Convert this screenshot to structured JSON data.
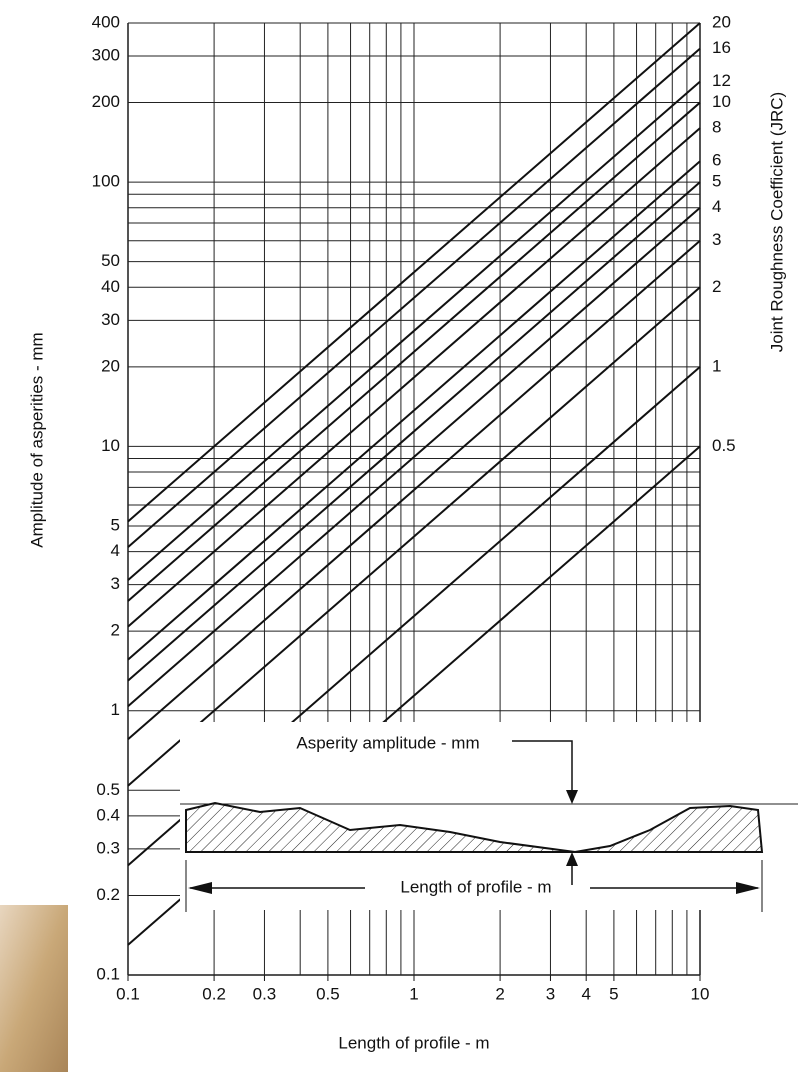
{
  "chart_data": {
    "type": "line",
    "x_label": "Length of profile - m",
    "y_label": "Amplitude of asperities - mm",
    "y2_label": "Joint Roughness Coefficient (JRC)",
    "annotations": [
      "Asperity amplitude - mm",
      "Length of profile - m"
    ],
    "log_x": true,
    "log_y": true,
    "grid": true,
    "xlim": [
      0.1,
      10
    ],
    "ylim": [
      0.1,
      400
    ],
    "xticks": [
      0.1,
      0.2,
      0.3,
      0.5,
      1,
      2,
      3,
      4,
      5,
      10
    ],
    "xminor": [
      0.4,
      0.6,
      0.7,
      0.8,
      0.9,
      6,
      7,
      8,
      9
    ],
    "yticks": [
      0.1,
      0.2,
      0.3,
      0.4,
      0.5,
      1,
      2,
      3,
      4,
      5,
      10,
      20,
      30,
      40,
      50,
      100,
      200,
      300,
      400
    ],
    "yminor": [
      6,
      7,
      8,
      9,
      60,
      70,
      80,
      90
    ],
    "x": [
      0.1,
      10
    ],
    "series": [
      {
        "name": "20",
        "color": "#111111",
        "values": [
          5.2,
          400
        ]
      },
      {
        "name": "16",
        "color": "#111111",
        "values": [
          4.16,
          320
        ]
      },
      {
        "name": "12",
        "color": "#111111",
        "values": [
          3.12,
          240
        ]
      },
      {
        "name": "10",
        "color": "#111111",
        "values": [
          2.6,
          200
        ]
      },
      {
        "name": "8",
        "color": "#111111",
        "values": [
          2.08,
          160
        ]
      },
      {
        "name": "6",
        "color": "#111111",
        "values": [
          1.56,
          120
        ]
      },
      {
        "name": "5",
        "color": "#111111",
        "values": [
          1.3,
          100
        ]
      },
      {
        "name": "4",
        "color": "#111111",
        "values": [
          1.04,
          80
        ]
      },
      {
        "name": "3",
        "color": "#111111",
        "values": [
          0.78,
          60
        ]
      },
      {
        "name": "2",
        "color": "#111111",
        "values": [
          0.52,
          40
        ]
      },
      {
        "name": "1",
        "color": "#111111",
        "values": [
          0.26,
          20
        ]
      },
      {
        "name": "0.5",
        "color": "#111111",
        "values": [
          0.13,
          10
        ]
      }
    ]
  }
}
